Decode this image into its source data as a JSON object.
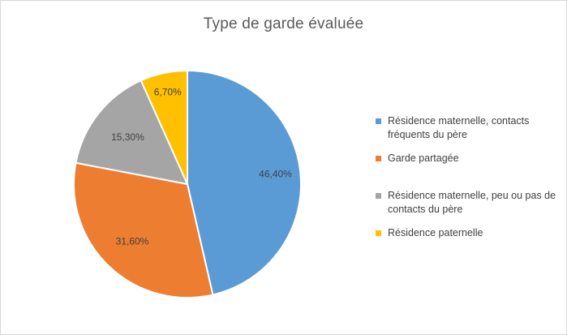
{
  "chart_data": {
    "type": "pie",
    "title": "Type de garde évaluée",
    "slices": [
      {
        "label": "Résidence maternelle, contacts fréquents du père",
        "value": 46.4,
        "display": "46,40%",
        "color": "#5b9bd5"
      },
      {
        "label": "Garde partagée",
        "value": 31.6,
        "display": "31,60%",
        "color": "#ed7d31"
      },
      {
        "label": "Résidence maternelle, peu ou pas de contacts du père",
        "value": 15.3,
        "display": "15,30%",
        "color": "#a5a5a5"
      },
      {
        "label": "Résidence paternelle",
        "value": 6.7,
        "display": "6,70%",
        "color": "#ffc000"
      }
    ],
    "legend_position": "right",
    "start_angle": "top",
    "direction": "clockwise"
  }
}
